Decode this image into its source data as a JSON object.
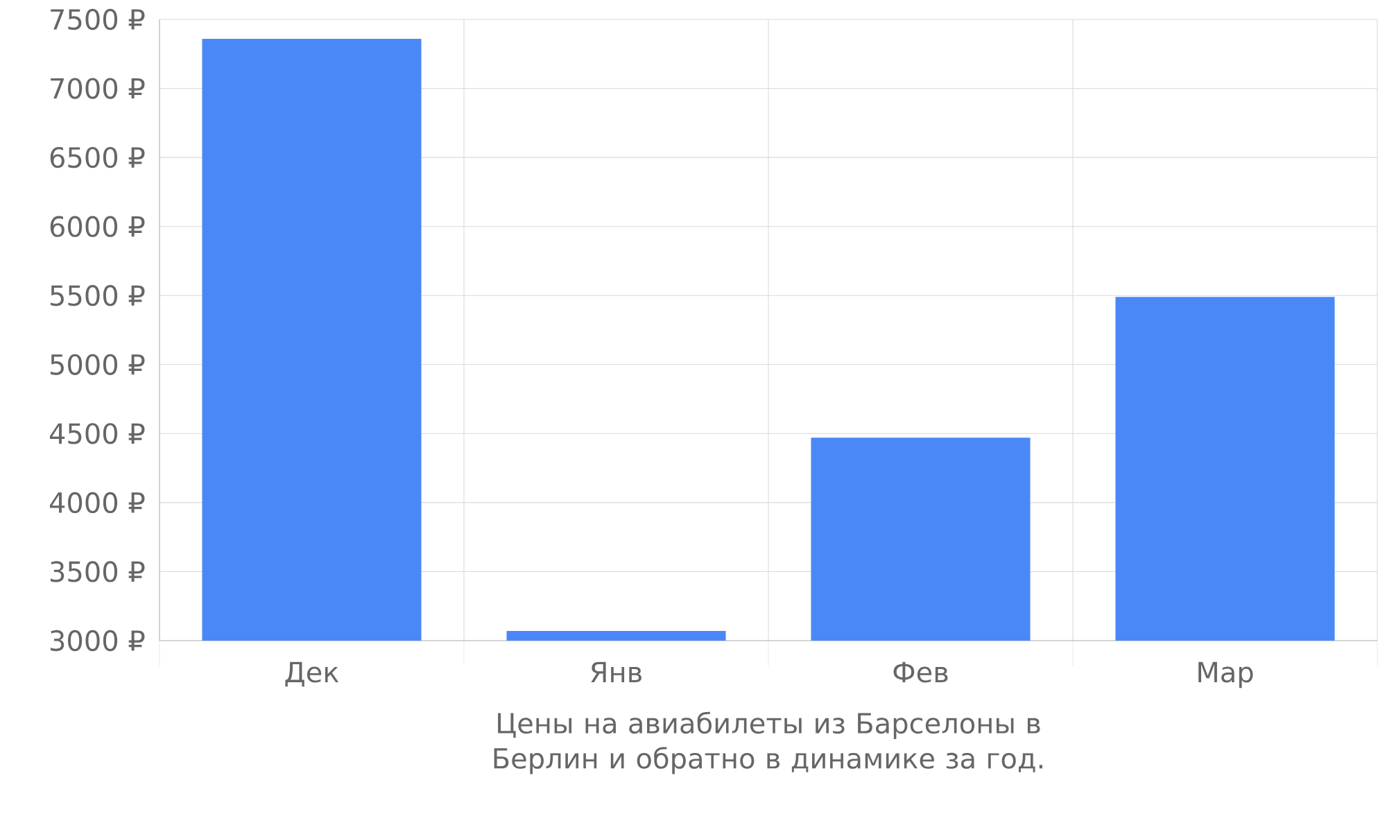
{
  "chart_data": {
    "type": "bar",
    "categories": [
      "Дек",
      "Янв",
      "Фев",
      "Мар"
    ],
    "values": [
      7360,
      3070,
      4470,
      5490
    ],
    "color": "#4a88f7",
    "ylim": [
      3000,
      7500
    ],
    "yticks": [
      {
        "value": 3000,
        "label": "3000 ₽"
      },
      {
        "value": 3500,
        "label": "3500 ₽"
      },
      {
        "value": 4000,
        "label": "4000 ₽"
      },
      {
        "value": 4500,
        "label": "4500 ₽"
      },
      {
        "value": 5000,
        "label": "5000 ₽"
      },
      {
        "value": 5500,
        "label": "5500 ₽"
      },
      {
        "value": 6000,
        "label": "6000 ₽"
      },
      {
        "value": 6500,
        "label": "6500 ₽"
      },
      {
        "value": 7000,
        "label": "7000 ₽"
      },
      {
        "value": 7500,
        "label": "7500 ₽"
      }
    ],
    "grid": true,
    "xlabel": "Цены на авиабилеты из Барселоны в Берлин и обратно в динамике за год."
  }
}
